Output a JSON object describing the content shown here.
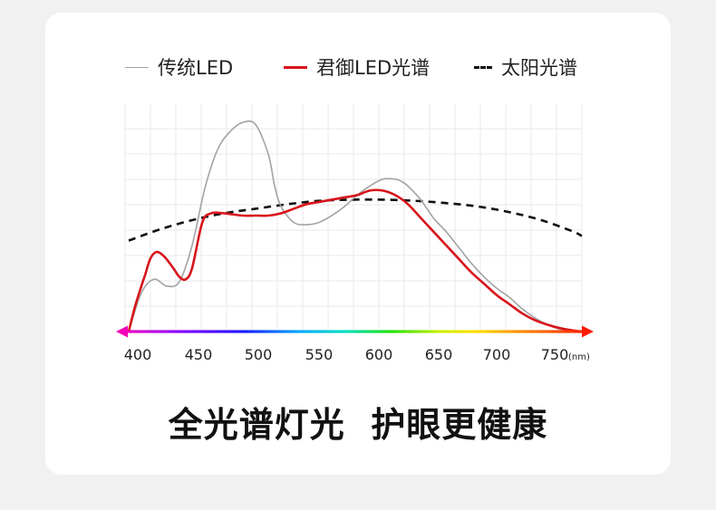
{
  "headline": "全光谱灯光  护眼更健康",
  "chart_data": {
    "type": "line",
    "title": "",
    "xlabel": "",
    "ylabel": "",
    "x_unit": "(nm)",
    "xlim": [
      390,
      765
    ],
    "ylim": [
      0,
      100
    ],
    "x_ticks": [
      400,
      450,
      500,
      550,
      600,
      650,
      700,
      750
    ],
    "x_tick_labels": [
      "400",
      "450",
      "500",
      "550",
      "600",
      "650",
      "700",
      "750"
    ],
    "grid": true,
    "legend_position": "top",
    "axis_style": "rainbow-arrow",
    "series": [
      {
        "name": "传统LED",
        "color": "#a3a3a3",
        "style": "solid",
        "x": [
          400,
          410,
          420,
          430,
          440,
          450,
          460,
          470,
          480,
          490,
          500,
          510,
          515,
          520,
          530,
          540,
          550,
          560,
          570,
          580,
          590,
          600,
          610,
          615,
          620,
          630,
          640,
          650,
          660,
          670,
          680,
          690,
          700,
          710,
          720,
          730,
          740,
          750,
          757
        ],
        "y": [
          0,
          17,
          23,
          20,
          22,
          38,
          63,
          80,
          88,
          92,
          91,
          78,
          64,
          55,
          48,
          47,
          48,
          51,
          55,
          60,
          64,
          67,
          67,
          66,
          64,
          58,
          50,
          44,
          37,
          30,
          24,
          19,
          15,
          10,
          6,
          3,
          1,
          0.3,
          0
        ]
      },
      {
        "name": "君御LED光谱",
        "color": "#d8141b",
        "style": "solid",
        "x": [
          400,
          405,
          410,
          413,
          417,
          422,
          428,
          435,
          440,
          445,
          450,
          458,
          465,
          475,
          490,
          500,
          510,
          520,
          530,
          540,
          550,
          560,
          570,
          580,
          590,
          600,
          610,
          620,
          630,
          640,
          650,
          660,
          670,
          680,
          690,
          700,
          710,
          720,
          730,
          740,
          750,
          757
        ],
        "y": [
          0,
          11,
          20,
          25,
          32,
          35,
          33,
          28,
          24,
          23,
          28,
          48,
          52,
          52,
          51,
          51,
          51,
          52,
          54,
          56,
          57,
          58,
          59,
          60,
          62,
          62,
          60,
          56,
          50,
          44,
          38,
          32,
          26,
          21,
          16,
          12,
          8,
          5,
          3,
          1.5,
          0.5,
          0
        ]
      },
      {
        "name": "太阳光谱",
        "color": "#111111",
        "style": "dashed",
        "x": [
          400,
          425,
          450,
          475,
          500,
          525,
          550,
          575,
          600,
          625,
          650,
          675,
          700,
          725,
          750,
          757
        ],
        "y": [
          40,
          45,
          49,
          52,
          54,
          56,
          57.5,
          58,
          58,
          57.5,
          56.5,
          55,
          52.5,
          49,
          44,
          42
        ]
      }
    ]
  }
}
